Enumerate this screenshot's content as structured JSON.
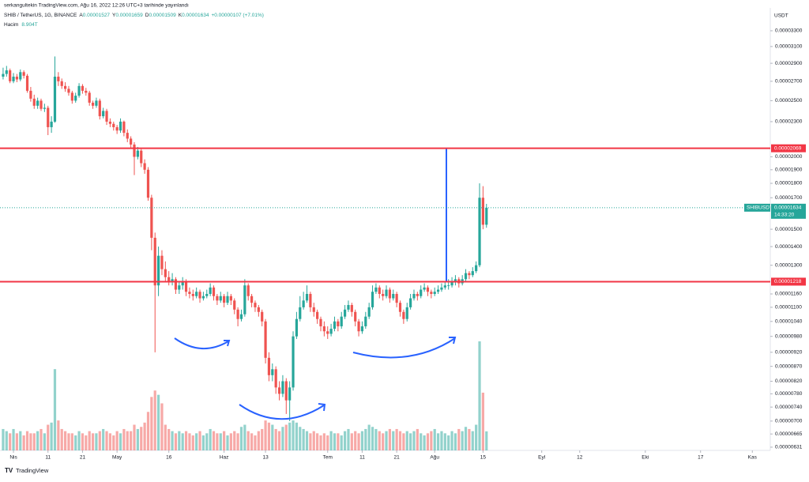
{
  "chart_data": {
    "type": "candlestick",
    "publisher": "serkangultekin TradingView.com, Ağu 16, 2022 12:26 UTC+3 tarihinde yayınlandı",
    "symbol": "SHIB / TetherUS, 1G, BINANCE",
    "legend_ohlc": [
      {
        "key": "A",
        "text": "0.00001527"
      },
      {
        "key": "Y",
        "text": "0.00001659"
      },
      {
        "key": "D",
        "text": "0.00001509"
      },
      {
        "key": "K",
        "text": "0.00001634"
      }
    ],
    "legend_change": "+0.00000107 (+7.01%)",
    "volume_title": "Hacim",
    "volume_label": "8.904T",
    "currency": "USDT",
    "footer": "TradingView",
    "log_scale": true,
    "up_color": "#26a69a",
    "down_color": "#ef5350",
    "ylim": [
      6.23e-06,
      3.614e-05
    ],
    "yticks": [
      {
        "value": 3.3e-05,
        "label": "0.00003300"
      },
      {
        "value": 3.1e-05,
        "label": "0.00003100"
      },
      {
        "value": 2.9e-05,
        "label": "0.00002900"
      },
      {
        "value": 2.7e-05,
        "label": "0.00002700"
      },
      {
        "value": 2.5e-05,
        "label": "0.00002500"
      },
      {
        "value": 2.3e-05,
        "label": "0.00002300"
      },
      {
        "value": 2e-05,
        "label": "0.00002000"
      },
      {
        "value": 1.9e-05,
        "label": "0.00001900"
      },
      {
        "value": 1.8e-05,
        "label": "0.00001800"
      },
      {
        "value": 1.7e-05,
        "label": "0.00001700"
      },
      {
        "value": 1.5e-05,
        "label": "0.00001500"
      },
      {
        "value": 1.4e-05,
        "label": "0.00001400"
      },
      {
        "value": 1.3e-05,
        "label": "0.00001300"
      },
      {
        "value": 1.16e-05,
        "label": "0.00001160"
      },
      {
        "value": 1.1e-05,
        "label": "0.00001100"
      },
      {
        "value": 1.04e-05,
        "label": "0.00001040"
      },
      {
        "value": 9.8e-06,
        "label": "0.00000980"
      },
      {
        "value": 9.2e-06,
        "label": "0.00000920"
      },
      {
        "value": 8.7e-06,
        "label": "0.00000870"
      },
      {
        "value": 8.2e-06,
        "label": "0.00000820"
      },
      {
        "value": 7.8e-06,
        "label": "0.00000780"
      },
      {
        "value": 7.4e-06,
        "label": "0.00000740"
      },
      {
        "value": 7e-06,
        "label": "0.00000700"
      },
      {
        "value": 6.65e-06,
        "label": "0.00000665"
      },
      {
        "value": 6.31e-06,
        "label": "0.00000631"
      }
    ],
    "xlim": [
      -3.9,
      219.2
    ],
    "xticks": [
      {
        "value": 0,
        "label": "Nis"
      },
      {
        "value": 10,
        "label": "11"
      },
      {
        "value": 20,
        "label": "21"
      },
      {
        "value": 30,
        "label": "May"
      },
      {
        "value": 45,
        "label": "16"
      },
      {
        "value": 61,
        "label": "Haz"
      },
      {
        "value": 73,
        "label": "13"
      },
      {
        "value": 91,
        "label": "Tem"
      },
      {
        "value": 101,
        "label": "11"
      },
      {
        "value": 111,
        "label": "21"
      },
      {
        "value": 122,
        "label": "Ağu"
      },
      {
        "value": 136,
        "label": "15"
      },
      {
        "value": 153,
        "label": "Eyl"
      },
      {
        "value": 164,
        "label": "12"
      },
      {
        "value": 183,
        "label": "Eki"
      },
      {
        "value": 199,
        "label": "17"
      },
      {
        "value": 214,
        "label": "Kas"
      }
    ],
    "levels": [
      {
        "value": 2.069e-05,
        "label": "0.00002069",
        "color": "#f23645"
      },
      {
        "value": 1.218e-05,
        "label": "0.00001218",
        "color": "#f23645"
      }
    ],
    "current_price": {
      "symbol": "SHIBUSDT",
      "value": 1.634e-05,
      "label": "0.00001634",
      "countdown": "14:33:20"
    },
    "x": [
      -3,
      -2,
      -1,
      0,
      1,
      2,
      3,
      4,
      5,
      6,
      7,
      8,
      9,
      10,
      11,
      12,
      13,
      14,
      15,
      16,
      17,
      18,
      19,
      20,
      21,
      22,
      23,
      24,
      25,
      26,
      27,
      28,
      29,
      30,
      31,
      32,
      33,
      34,
      35,
      36,
      37,
      38,
      39,
      40,
      41,
      42,
      43,
      44,
      45,
      46,
      47,
      48,
      49,
      50,
      51,
      52,
      53,
      54,
      55,
      56,
      57,
      58,
      59,
      60,
      61,
      62,
      63,
      64,
      65,
      66,
      67,
      68,
      69,
      70,
      71,
      72,
      73,
      74,
      75,
      76,
      77,
      78,
      79,
      80,
      81,
      82,
      83,
      84,
      85,
      86,
      87,
      88,
      89,
      90,
      91,
      92,
      93,
      94,
      95,
      96,
      97,
      98,
      99,
      100,
      101,
      102,
      103,
      104,
      105,
      106,
      107,
      108,
      109,
      110,
      111,
      112,
      113,
      114,
      115,
      116,
      117,
      118,
      119,
      120,
      121,
      122,
      123,
      124,
      125,
      126,
      127,
      128,
      129,
      130,
      131,
      132,
      133,
      134,
      135,
      136,
      137
    ],
    "ohlc": [
      [
        2.75e-05,
        2.85e-05,
        2.72e-05,
        2.78e-05
      ],
      [
        2.78e-05,
        2.87e-05,
        2.75e-05,
        2.82e-05
      ],
      [
        2.82e-05,
        2.84e-05,
        2.68e-05,
        2.7e-05
      ],
      [
        2.7e-05,
        2.79e-05,
        2.68e-05,
        2.75e-05
      ],
      [
        2.75e-05,
        2.78e-05,
        2.69e-05,
        2.72e-05
      ],
      [
        2.72e-05,
        2.83e-05,
        2.7e-05,
        2.8e-05
      ],
      [
        2.8e-05,
        2.82e-05,
        2.73e-05,
        2.76e-05
      ],
      [
        2.76e-05,
        2.78e-05,
        2.58e-05,
        2.6e-05
      ],
      [
        2.6e-05,
        2.64e-05,
        2.49e-05,
        2.52e-05
      ],
      [
        2.52e-05,
        2.56e-05,
        2.42e-05,
        2.45e-05
      ],
      [
        2.45e-05,
        2.53e-05,
        2.42e-05,
        2.5e-05
      ],
      [
        2.5e-05,
        2.52e-05,
        2.4e-05,
        2.42e-05
      ],
      [
        2.42e-05,
        2.47e-05,
        2.39e-05,
        2.43e-05
      ],
      [
        2.43e-05,
        2.45e-05,
        2.18e-05,
        2.25e-05
      ],
      [
        2.25e-05,
        2.35e-05,
        2.2e-05,
        2.3e-05
      ],
      [
        2.3e-05,
        2.98e-05,
        2.29e-05,
        2.75e-05
      ],
      [
        2.75e-05,
        2.8e-05,
        2.65e-05,
        2.7e-05
      ],
      [
        2.7e-05,
        2.73e-05,
        2.62e-05,
        2.65e-05
      ],
      [
        2.65e-05,
        2.69e-05,
        2.59e-05,
        2.62e-05
      ],
      [
        2.62e-05,
        2.65e-05,
        2.55e-05,
        2.58e-05
      ],
      [
        2.58e-05,
        2.6e-05,
        2.47e-05,
        2.5e-05
      ],
      [
        2.5e-05,
        2.58e-05,
        2.48e-05,
        2.55e-05
      ],
      [
        2.55e-05,
        2.68e-05,
        2.53e-05,
        2.65e-05
      ],
      [
        2.65e-05,
        2.67e-05,
        2.57e-05,
        2.6e-05
      ],
      [
        2.6e-05,
        2.63e-05,
        2.55e-05,
        2.58e-05
      ],
      [
        2.58e-05,
        2.6e-05,
        2.45e-05,
        2.48e-05
      ],
      [
        2.48e-05,
        2.5e-05,
        2.42e-05,
        2.45e-05
      ],
      [
        2.45e-05,
        2.53e-05,
        2.43e-05,
        2.5e-05
      ],
      [
        2.5e-05,
        2.52e-05,
        2.32e-05,
        2.35e-05
      ],
      [
        2.35e-05,
        2.43e-05,
        2.33e-05,
        2.4e-05
      ],
      [
        2.4e-05,
        2.42e-05,
        2.27e-05,
        2.3e-05
      ],
      [
        2.3e-05,
        2.33e-05,
        2.25e-05,
        2.28e-05
      ],
      [
        2.28e-05,
        2.3e-05,
        2.22e-05,
        2.25e-05
      ],
      [
        2.25e-05,
        2.27e-05,
        2.19e-05,
        2.22e-05
      ],
      [
        2.22e-05,
        2.33e-05,
        2.2e-05,
        2.3e-05
      ],
      [
        2.3e-05,
        2.31e-05,
        2.17e-05,
        2.2e-05
      ],
      [
        2.2e-05,
        2.23e-05,
        2.12e-05,
        2.15e-05
      ],
      [
        2.15e-05,
        2.17e-05,
        2.07e-05,
        2.1e-05
      ],
      [
        2.1e-05,
        2.12e-05,
        1.86e-05,
        2e-05
      ],
      [
        2e-05,
        2.08e-05,
        1.98e-05,
        2.05e-05
      ],
      [
        2.05e-05,
        2.07e-05,
        1.92e-05,
        1.95e-05
      ],
      [
        1.95e-05,
        1.98e-05,
        1.87e-05,
        1.9e-05
      ],
      [
        1.9e-05,
        1.92e-05,
        1.68e-05,
        1.7e-05
      ],
      [
        1.7e-05,
        1.72e-05,
        1.38e-05,
        1.45e-05
      ],
      [
        1.45e-05,
        1.48e-05,
        9.2e-06,
        1.2e-05
      ],
      [
        1.2e-05,
        1.4e-05,
        1.15e-05,
        1.35e-05
      ],
      [
        1.35e-05,
        1.38e-05,
        1.25e-05,
        1.28e-05
      ],
      [
        1.28e-05,
        1.32e-05,
        1.22e-05,
        1.24e-05
      ],
      [
        1.24e-05,
        1.27e-05,
        1.2e-05,
        1.22e-05
      ],
      [
        1.22e-05,
        1.26e-05,
        1.2e-05,
        1.23e-05
      ],
      [
        1.23e-05,
        1.24e-05,
        1.16e-05,
        1.18e-05
      ],
      [
        1.18e-05,
        1.22e-05,
        1.16e-05,
        1.2e-05
      ],
      [
        1.2e-05,
        1.24e-05,
        1.18e-05,
        1.22e-05
      ],
      [
        1.22e-05,
        1.23e-05,
        1.15e-05,
        1.17e-05
      ],
      [
        1.17e-05,
        1.19e-05,
        1.14e-05,
        1.16e-05
      ],
      [
        1.16e-05,
        1.18e-05,
        1.13e-05,
        1.15e-05
      ],
      [
        1.15e-05,
        1.19e-05,
        1.14e-05,
        1.17e-05
      ],
      [
        1.17e-05,
        1.18e-05,
        1.12e-05,
        1.14e-05
      ],
      [
        1.14e-05,
        1.17e-05,
        1.13e-05,
        1.15e-05
      ],
      [
        1.15e-05,
        1.18e-05,
        1.14e-05,
        1.16e-05
      ],
      [
        1.16e-05,
        1.21e-05,
        1.15e-05,
        1.19e-05
      ],
      [
        1.19e-05,
        1.2e-05,
        1.13e-05,
        1.15e-05
      ],
      [
        1.15e-05,
        1.16e-05,
        1.11e-05,
        1.13e-05
      ],
      [
        1.13e-05,
        1.17e-05,
        1.12e-05,
        1.15e-05
      ],
      [
        1.15e-05,
        1.16e-05,
        1.1e-05,
        1.12e-05
      ],
      [
        1.12e-05,
        1.17e-05,
        1.11e-05,
        1.15e-05
      ],
      [
        1.15e-05,
        1.16e-05,
        1.11e-05,
        1.13e-05
      ],
      [
        1.13e-05,
        1.14e-05,
        1.07e-05,
        1.09e-05
      ],
      [
        1.09e-05,
        1.1e-05,
        1.02e-05,
        1.05e-05
      ],
      [
        1.05e-05,
        1.09e-05,
        1.04e-05,
        1.07e-05
      ],
      [
        1.07e-05,
        1.23e-05,
        1.06e-05,
        1.2e-05
      ],
      [
        1.2e-05,
        1.21e-05,
        1.13e-05,
        1.15e-05
      ],
      [
        1.15e-05,
        1.16e-05,
        1.1e-05,
        1.12e-05
      ],
      [
        1.12e-05,
        1.13e-05,
        1.08e-05,
        1.1e-05
      ],
      [
        1.1e-05,
        1.11e-05,
        1.06e-05,
        1.08e-05
      ],
      [
        1.08e-05,
        1.09e-05,
        1.02e-05,
        1.04e-05
      ],
      [
        1.04e-05,
        1.05e-05,
        8.8e-06,
        9e-06
      ],
      [
        9e-06,
        9.2e-06,
        8.2e-06,
        8.4e-06
      ],
      [
        8.4e-06,
        8.8e-06,
        8.2e-06,
        8.6e-06
      ],
      [
        8.6e-06,
        8.7e-06,
        7.8e-06,
        8e-06
      ],
      [
        8e-06,
        8.2e-06,
        7.6e-06,
        7.8e-06
      ],
      [
        7.8e-06,
        8.4e-06,
        7.7e-06,
        8.2e-06
      ],
      [
        8.2e-06,
        8.3e-06,
        7.2e-06,
        7.6e-06
      ],
      [
        7.6e-06,
        8.2e-06,
        7e-06,
        8e-06
      ],
      [
        8e-06,
        1e-05,
        7.9e-06,
        9.8e-06
      ],
      [
        9.8e-06,
        1.08e-05,
        9.7e-06,
        1.05e-05
      ],
      [
        1.05e-05,
        1.15e-05,
        1.04e-05,
        1.1e-05
      ],
      [
        1.1e-05,
        1.17e-05,
        1.09e-05,
        1.13e-05
      ],
      [
        1.13e-05,
        1.2e-05,
        1.12e-05,
        1.16e-05
      ],
      [
        1.16e-05,
        1.17e-05,
        1.08e-05,
        1.1e-05
      ],
      [
        1.1e-05,
        1.12e-05,
        1.06e-05,
        1.08e-05
      ],
      [
        1.08e-05,
        1.09e-05,
        1.03e-05,
        1.05e-05
      ],
      [
        1.05e-05,
        1.06e-05,
        1e-05,
        1.02e-05
      ],
      [
        1.02e-05,
        1.04e-05,
        9.8e-06,
        1e-05
      ],
      [
        1e-05,
        1.02e-05,
        9.7e-06,
        9.9e-06
      ],
      [
        9.9e-06,
        1.03e-05,
        9.8e-06,
        1.01e-05
      ],
      [
        1.01e-05,
        1.06e-05,
        1e-05,
        1.04e-05
      ],
      [
        1.04e-05,
        1.05e-05,
        1e-05,
        1.02e-05
      ],
      [
        1.02e-05,
        1.08e-05,
        1.01e-05,
        1.06e-05
      ],
      [
        1.06e-05,
        1.11e-05,
        1.05e-05,
        1.09e-05
      ],
      [
        1.09e-05,
        1.13e-05,
        1.08e-05,
        1.11e-05
      ],
      [
        1.11e-05,
        1.12e-05,
        1.06e-05,
        1.08e-05
      ],
      [
        1.08e-05,
        1.09e-05,
        1.02e-05,
        1.04e-05
      ],
      [
        1.04e-05,
        1.05e-05,
        9.8e-06,
        1e-05
      ],
      [
        1e-05,
        1.04e-05,
        9.9e-06,
        1.02e-05
      ],
      [
        1.02e-05,
        1.08e-05,
        1.01e-05,
        1.06e-05
      ],
      [
        1.06e-05,
        1.12e-05,
        1.05e-05,
        1.1e-05
      ],
      [
        1.1e-05,
        1.2e-05,
        1.09e-05,
        1.17e-05
      ],
      [
        1.17e-05,
        1.21e-05,
        1.16e-05,
        1.19e-05
      ],
      [
        1.19e-05,
        1.2e-05,
        1.14e-05,
        1.16e-05
      ],
      [
        1.16e-05,
        1.18e-05,
        1.13e-05,
        1.15e-05
      ],
      [
        1.15e-05,
        1.2e-05,
        1.14e-05,
        1.18e-05
      ],
      [
        1.18e-05,
        1.19e-05,
        1.12e-05,
        1.14e-05
      ],
      [
        1.14e-05,
        1.18e-05,
        1.13e-05,
        1.16e-05
      ],
      [
        1.16e-05,
        1.17e-05,
        1.1e-05,
        1.12e-05
      ],
      [
        1.12e-05,
        1.13e-05,
        1.06e-05,
        1.08e-05
      ],
      [
        1.08e-05,
        1.09e-05,
        1.03e-05,
        1.05e-05
      ],
      [
        1.05e-05,
        1.12e-05,
        1.04e-05,
        1.1e-05
      ],
      [
        1.1e-05,
        1.16e-05,
        1.09e-05,
        1.14e-05
      ],
      [
        1.14e-05,
        1.18e-05,
        1.13e-05,
        1.16e-05
      ],
      [
        1.16e-05,
        1.17e-05,
        1.13e-05,
        1.15e-05
      ],
      [
        1.15e-05,
        1.2e-05,
        1.14e-05,
        1.18e-05
      ],
      [
        1.18e-05,
        1.21e-05,
        1.17e-05,
        1.19e-05
      ],
      [
        1.19e-05,
        1.2e-05,
        1.15e-05,
        1.17e-05
      ],
      [
        1.17e-05,
        1.18e-05,
        1.14e-05,
        1.16e-05
      ],
      [
        1.16e-05,
        1.19e-05,
        1.15e-05,
        1.17e-05
      ],
      [
        1.17e-05,
        1.2e-05,
        1.16e-05,
        1.18e-05
      ],
      [
        1.18e-05,
        1.21e-05,
        1.17e-05,
        1.19e-05
      ],
      [
        1.19e-05,
        1.22e-05,
        1.18e-05,
        1.2e-05
      ],
      [
        1.2e-05,
        1.23e-05,
        1.18e-05,
        1.2e-05
      ],
      [
        1.2e-05,
        1.24e-05,
        1.19e-05,
        1.22e-05
      ],
      [
        1.22e-05,
        1.25e-05,
        1.2e-05,
        1.23e-05
      ],
      [
        1.23e-05,
        1.24e-05,
        1.19e-05,
        1.21e-05
      ],
      [
        1.21e-05,
        1.25e-05,
        1.2e-05,
        1.23e-05
      ],
      [
        1.23e-05,
        1.28e-05,
        1.22e-05,
        1.26e-05
      ],
      [
        1.26e-05,
        1.27e-05,
        1.23e-05,
        1.25e-05
      ],
      [
        1.25e-05,
        1.29e-05,
        1.24e-05,
        1.27e-05
      ],
      [
        1.27e-05,
        1.32e-05,
        1.26e-05,
        1.3e-05
      ],
      [
        1.3e-05,
        1.8e-05,
        1.29e-05,
        1.7e-05
      ],
      [
        1.7e-05,
        1.78e-05,
        1.5e-05,
        1.527e-05
      ],
      [
        1.527e-05,
        1.659e-05,
        1.509e-05,
        1.634e-05
      ]
    ],
    "volume": [
      10,
      9,
      8,
      10,
      8,
      9,
      7,
      9,
      8,
      8,
      9,
      10,
      8,
      12,
      13,
      38,
      14,
      10,
      9,
      8,
      8,
      7,
      9,
      8,
      7,
      9,
      8,
      8,
      9,
      10,
      9,
      8,
      7,
      9,
      8,
      10,
      9,
      9,
      12,
      10,
      11,
      13,
      18,
      25,
      28,
      26,
      22,
      12,
      10,
      9,
      8,
      9,
      8,
      9,
      8,
      7,
      8,
      9,
      7,
      8,
      10,
      9,
      8,
      8,
      9,
      7,
      8,
      9,
      8,
      11,
      12,
      9,
      8,
      7,
      9,
      10,
      14,
      13,
      12,
      10,
      9,
      11,
      12,
      13,
      14,
      13,
      11,
      10,
      9,
      8,
      9,
      8,
      7,
      8,
      7,
      9,
      8,
      8,
      7,
      9,
      10,
      8,
      9,
      8,
      9,
      10,
      12,
      11,
      10,
      9,
      8,
      9,
      10,
      9,
      10,
      9,
      8,
      9,
      8,
      9,
      10,
      8,
      7,
      8,
      9,
      10,
      8,
      9,
      8,
      7,
      9,
      8,
      10,
      9,
      11,
      10,
      9,
      12,
      51,
      27,
      8.904
    ]
  }
}
